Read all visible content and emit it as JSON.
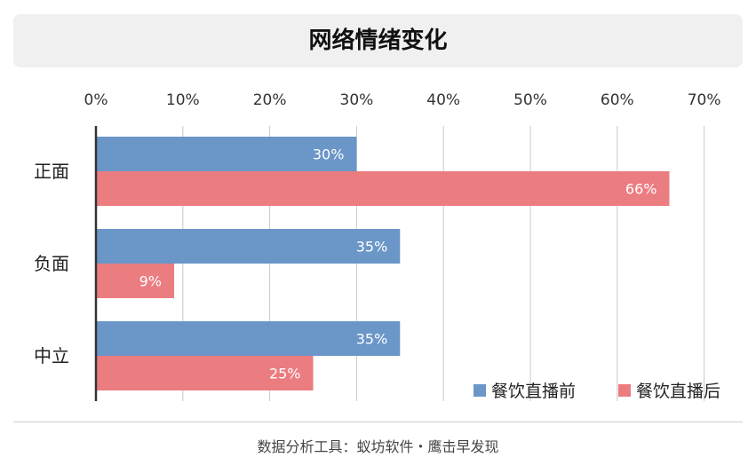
{
  "title": "网络情绪变化",
  "footer": "数据分析工具：蚁坊软件・鹰击早发现",
  "colors": {
    "before": "#6a96c8",
    "after": "#eb7c80"
  },
  "chart_data": {
    "type": "bar",
    "orientation": "horizontal",
    "title": "网络情绪变化",
    "categories": [
      "正面",
      "负面",
      "中立"
    ],
    "series": [
      {
        "name": "餐饮直播前",
        "values": [
          30,
          35,
          35
        ],
        "labels": [
          "30%",
          "35%",
          "35%"
        ]
      },
      {
        "name": "餐饮直播后",
        "values": [
          66,
          9,
          25
        ],
        "labels": [
          "66%",
          "9%",
          "25%"
        ]
      }
    ],
    "xlim": [
      0,
      70
    ],
    "xticks": [
      0,
      10,
      20,
      30,
      40,
      50,
      60,
      70
    ],
    "xtick_labels": [
      "0%",
      "10%",
      "20%",
      "30%",
      "40%",
      "50%",
      "60%",
      "70%"
    ],
    "xaxis_position": "top",
    "grid": "vertical",
    "legend_position": "bottom-right"
  }
}
